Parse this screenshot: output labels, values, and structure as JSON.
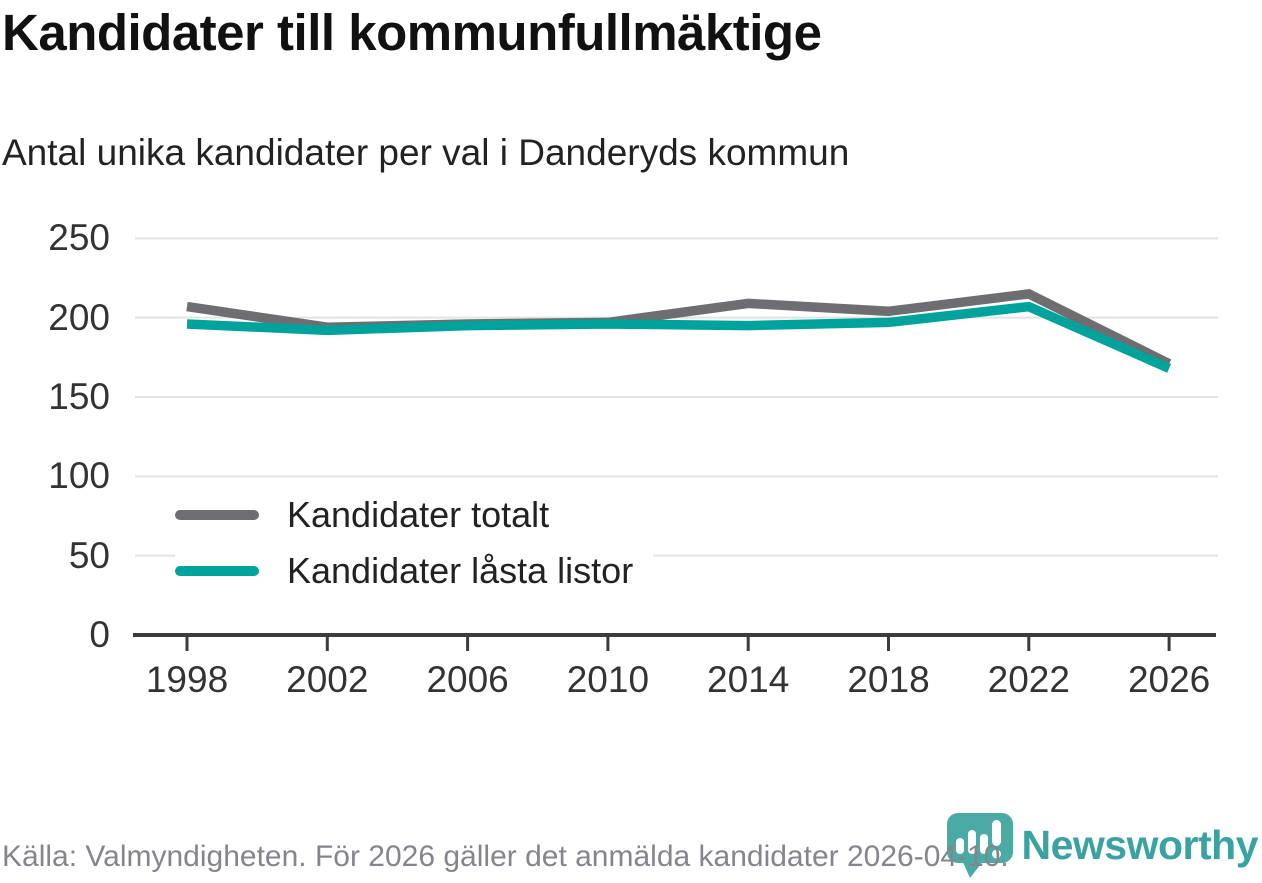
{
  "title": "Kandidater till kommunfullmäktige",
  "subtitle": "Antal unika kandidater per val i Danderyds kommun",
  "footer": {
    "source_text": "Källa: Valmyndigheten. För 2026 gäller det anmälda kandidater 2026-04-10."
  },
  "brand": {
    "name": "Newsworthy",
    "icon": "newsworthy-speech-bubble-bar-chart-icon",
    "icon_color": "#4aaaa5",
    "text_color": "#3aa2a0"
  },
  "colors": {
    "total_line": "#6d6d72",
    "locked_line": "#00a39b",
    "grid": "#e3e3e3",
    "axis": "#3c3c3c",
    "title_text": "#111111",
    "tick_label": "#333333",
    "footer_text": "#85858e"
  },
  "chart_data": {
    "type": "line",
    "title": "Kandidater till kommunfullmäktige",
    "subtitle": "Antal unika kandidater per val i Danderyds kommun",
    "x": [
      1998,
      2002,
      2006,
      2010,
      2014,
      2018,
      2022,
      2026
    ],
    "series": [
      {
        "name": "Kandidater totalt",
        "color": "#6d6d72",
        "values": [
          207,
          194,
          196,
          197,
          209,
          204,
          215,
          171
        ]
      },
      {
        "name": "Kandidater låsta listor",
        "color": "#00a39b",
        "values": [
          196,
          192,
          195,
          196,
          195,
          197,
          207,
          168
        ]
      }
    ],
    "ylim": [
      0,
      250
    ],
    "yticks": [
      0,
      50,
      100,
      150,
      200,
      250
    ],
    "xticks": [
      1998,
      2002,
      2006,
      2010,
      2014,
      2018,
      2022,
      2026
    ],
    "grid": "horizontal",
    "legend_position": "inside-left-middle"
  }
}
